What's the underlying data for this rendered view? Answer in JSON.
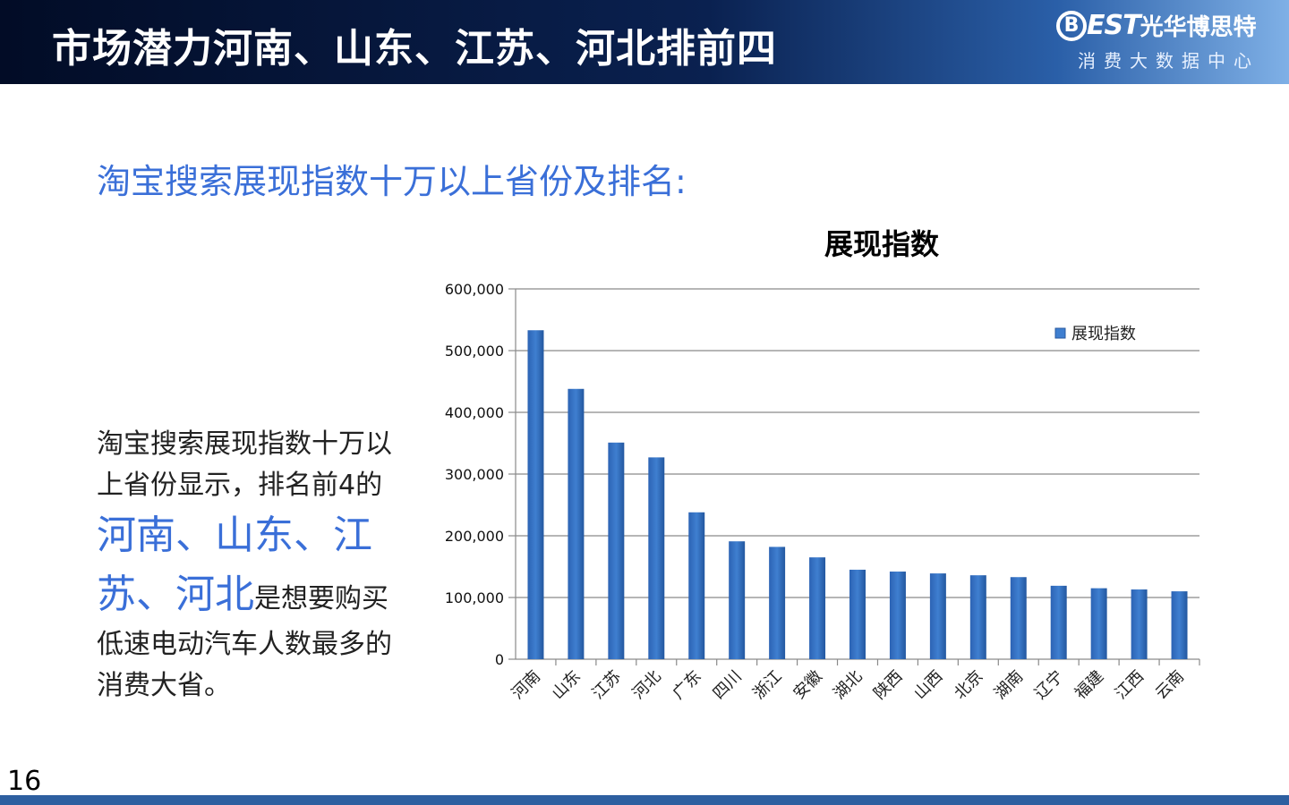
{
  "header": {
    "title": "市场潜力河南、山东、江苏、河北排前四",
    "logo_letter": "B",
    "logo_latin": "EST",
    "logo_cn": "光华博思特",
    "logo_sub": "消费大数据中心"
  },
  "subtitle": "淘宝搜索展现指数十万以上省份及排名:",
  "body": {
    "part1": "淘宝搜索展现指数十万以上省份显示，排名前4的",
    "highlight": "河南、山东、江苏、河北",
    "part2": "是想要购买低速电动汽车人数最多的消费大省。"
  },
  "page_number": "16",
  "colors": {
    "accent": "#3a6fd8",
    "bar": "#3f7fd0",
    "header_dark": "#020c26",
    "footer": "#2d5fa0"
  },
  "chart_data": {
    "type": "bar",
    "title": "展现指数",
    "categories": [
      "河南",
      "山东",
      "江苏",
      "河北",
      "广东",
      "四川",
      "浙江",
      "安徽",
      "湖北",
      "陕西",
      "山西",
      "北京",
      "湖南",
      "辽宁",
      "福建",
      "江西",
      "云南"
    ],
    "series": [
      {
        "name": "展现指数",
        "values": [
          533000,
          438000,
          351000,
          327000,
          238000,
          191000,
          182000,
          165000,
          145000,
          142000,
          139000,
          136000,
          133000,
          119000,
          115000,
          113000,
          110000
        ]
      }
    ],
    "ylim": [
      0,
      600000
    ],
    "yticks": [
      0,
      100000,
      200000,
      300000,
      400000,
      500000,
      600000
    ],
    "ytick_labels": [
      "0",
      "100,000",
      "200,000",
      "300,000",
      "400,000",
      "500,000",
      "600,000"
    ],
    "grid": true,
    "legend_position": "top-right"
  }
}
